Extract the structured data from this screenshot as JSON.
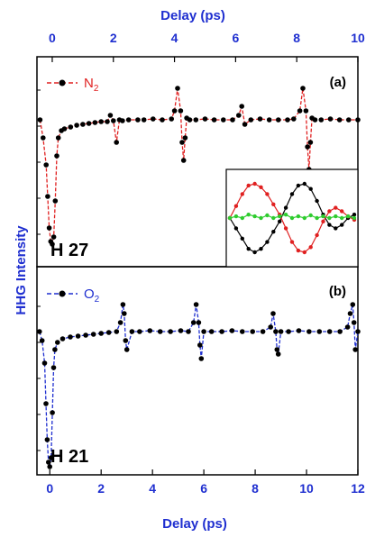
{
  "chart_data": [
    {
      "type": "line",
      "panel": "(a)",
      "harmonic_label": "H 27",
      "top_xlabel": "Delay (ps)",
      "ylabel": "HHG Intensity",
      "xlim": [
        -0.5,
        10
      ],
      "xticks": [
        "0",
        "2",
        "4",
        "6",
        "8",
        "10"
      ],
      "legend": "N2",
      "legend_color": "#e02020",
      "marker_color": "#000000",
      "series": [
        {
          "name": "N2",
          "x": [
            -0.4,
            -0.3,
            -0.2,
            -0.15,
            -0.1,
            -0.05,
            0.0,
            0.05,
            0.1,
            0.15,
            0.2,
            0.3,
            0.4,
            0.6,
            0.8,
            1.0,
            1.2,
            1.4,
            1.6,
            1.8,
            1.9,
            2.0,
            2.1,
            2.2,
            2.3,
            2.5,
            2.8,
            3.0,
            3.3,
            3.6,
            3.9,
            4.0,
            4.1,
            4.2,
            4.25,
            4.3,
            4.35,
            4.4,
            4.5,
            4.7,
            5.0,
            5.3,
            5.6,
            5.9,
            6.1,
            6.2,
            6.3,
            6.5,
            6.8,
            7.1,
            7.4,
            7.7,
            7.9,
            8.1,
            8.2,
            8.3,
            8.35,
            8.4,
            8.45,
            8.5,
            8.6,
            8.8,
            9.1,
            9.4,
            9.7,
            10.0
          ],
          "y": [
            0.0,
            -0.2,
            -0.5,
            -0.85,
            -1.2,
            -1.35,
            -1.38,
            -1.3,
            -0.9,
            -0.4,
            -0.2,
            -0.12,
            -0.1,
            -0.08,
            -0.06,
            -0.05,
            -0.04,
            -0.03,
            -0.02,
            -0.02,
            0.05,
            -0.01,
            -0.25,
            0.0,
            -0.01,
            0.0,
            0.0,
            0.0,
            0.01,
            0.0,
            0.01,
            0.1,
            0.35,
            0.1,
            -0.25,
            -0.45,
            -0.2,
            0.02,
            0.0,
            0.0,
            0.01,
            0.0,
            0.0,
            0.0,
            0.05,
            0.15,
            -0.05,
            0.0,
            0.01,
            0.0,
            0.0,
            0.0,
            0.01,
            0.1,
            0.35,
            0.1,
            -0.3,
            -0.55,
            -0.25,
            0.02,
            0.0,
            0.0,
            0.01,
            0.0,
            0.0,
            0.0
          ]
        }
      ],
      "inset": {
        "series": [
          {
            "name": "black",
            "color": "#000000",
            "x": [
              0,
              0.05,
              0.1,
              0.15,
              0.2,
              0.25,
              0.3,
              0.35,
              0.4,
              0.45,
              0.5,
              0.55,
              0.6,
              0.65,
              0.7,
              0.75,
              0.8,
              0.85,
              0.9,
              0.95,
              1.0
            ],
            "y": [
              0.0,
              -0.3,
              -0.6,
              -0.9,
              -1.0,
              -0.9,
              -0.7,
              -0.4,
              -0.1,
              0.3,
              0.7,
              0.95,
              1.0,
              0.85,
              0.5,
              0.1,
              -0.2,
              -0.3,
              -0.2,
              0.0,
              0.1
            ]
          },
          {
            "name": "red",
            "color": "#e02020",
            "x": [
              0,
              0.05,
              0.1,
              0.15,
              0.2,
              0.25,
              0.3,
              0.35,
              0.4,
              0.45,
              0.5,
              0.55,
              0.6,
              0.65,
              0.7,
              0.75,
              0.8,
              0.85,
              0.9,
              0.95,
              1.0
            ],
            "y": [
              0.0,
              0.35,
              0.7,
              0.95,
              1.0,
              0.9,
              0.7,
              0.4,
              0.1,
              -0.3,
              -0.7,
              -0.95,
              -1.0,
              -0.85,
              -0.5,
              -0.1,
              0.2,
              0.3,
              0.2,
              0.05,
              -0.05
            ]
          },
          {
            "name": "green",
            "color": "#2ecc2e",
            "x": [
              0,
              0.05,
              0.1,
              0.15,
              0.2,
              0.25,
              0.3,
              0.35,
              0.4,
              0.45,
              0.5,
              0.55,
              0.6,
              0.65,
              0.7,
              0.75,
              0.8,
              0.85,
              0.9,
              0.95,
              1.0
            ],
            "y": [
              0.0,
              0.05,
              0.0,
              0.1,
              0.05,
              0.0,
              0.08,
              0.0,
              0.05,
              0.1,
              0.0,
              0.05,
              0.0,
              0.08,
              0.0,
              0.05,
              0.0,
              0.05,
              0.0,
              0.05,
              0.0
            ]
          }
        ]
      }
    },
    {
      "type": "line",
      "panel": "(b)",
      "harmonic_label": "H 21",
      "xlabel": "Delay (ps)",
      "xlim": [
        -0.5,
        12
      ],
      "xticks": [
        "0",
        "2",
        "4",
        "6",
        "8",
        "10",
        "12"
      ],
      "legend": "O2",
      "legend_color": "#1f2fd0",
      "marker_color": "#000000",
      "series": [
        {
          "name": "O2",
          "x": [
            -0.4,
            -0.3,
            -0.2,
            -0.15,
            -0.1,
            -0.05,
            0.0,
            0.05,
            0.1,
            0.15,
            0.2,
            0.3,
            0.5,
            0.8,
            1.1,
            1.4,
            1.7,
            2.0,
            2.3,
            2.6,
            2.75,
            2.85,
            2.9,
            2.95,
            3.0,
            3.2,
            3.5,
            3.9,
            4.3,
            4.7,
            5.1,
            5.4,
            5.6,
            5.7,
            5.8,
            5.85,
            5.9,
            6.0,
            6.3,
            6.7,
            7.1,
            7.5,
            7.9,
            8.3,
            8.6,
            8.7,
            8.8,
            8.85,
            8.9,
            9.0,
            9.3,
            9.7,
            10.1,
            10.5,
            10.9,
            11.3,
            11.6,
            11.7,
            11.8,
            11.85,
            11.9,
            12.0
          ],
          "y": [
            0.0,
            -0.1,
            -0.35,
            -0.8,
            -1.2,
            -1.45,
            -1.5,
            -1.4,
            -0.9,
            -0.4,
            -0.2,
            -0.12,
            -0.08,
            -0.06,
            -0.05,
            -0.04,
            -0.03,
            -0.02,
            -0.01,
            0.0,
            0.1,
            0.3,
            0.2,
            -0.1,
            -0.2,
            0.0,
            0.0,
            0.01,
            0.0,
            0.0,
            0.01,
            0.0,
            0.1,
            0.3,
            0.1,
            -0.15,
            -0.3,
            0.0,
            0.0,
            0.0,
            0.01,
            0.0,
            0.0,
            0.0,
            0.05,
            0.2,
            0.0,
            -0.2,
            -0.25,
            0.0,
            0.0,
            0.01,
            0.0,
            0.0,
            0.0,
            0.0,
            0.05,
            0.2,
            0.3,
            0.1,
            -0.2,
            0.0
          ]
        }
      ]
    }
  ]
}
